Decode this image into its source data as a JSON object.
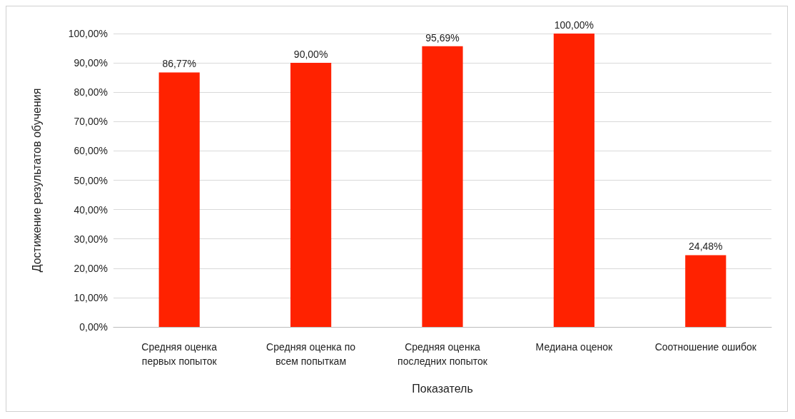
{
  "chart_data": {
    "type": "bar",
    "xlabel": "Показатель",
    "ylabel": "Достижение результатов обучения",
    "categories": [
      "Средняя оценка первых попыток",
      "Средняя оценка по всем попыткам",
      "Средняя оценка последних попыток",
      "Медиана оценок",
      "Соотношение ошибок"
    ],
    "values": [
      86.77,
      90,
      95.69,
      100,
      24.48
    ],
    "value_labels": [
      "86,77%",
      "90,00%",
      "95,69%",
      "100,00%",
      "24,48%"
    ],
    "color": "#ff2200",
    "ylim": [
      0,
      100
    ],
    "yticks": [
      {
        "value": 0,
        "label": "0,00%"
      },
      {
        "value": 10,
        "label": "10,00%"
      },
      {
        "value": 20,
        "label": "20,00%"
      },
      {
        "value": 30,
        "label": "30,00%"
      },
      {
        "value": 40,
        "label": "40,00%"
      },
      {
        "value": 50,
        "label": "50,00%"
      },
      {
        "value": 60,
        "label": "60,00%"
      },
      {
        "value": 70,
        "label": "70,00%"
      },
      {
        "value": 80,
        "label": "80,00%"
      },
      {
        "value": 90,
        "label": "90,00%"
      },
      {
        "value": 100,
        "label": "100,00%"
      }
    ],
    "grid": "y"
  }
}
